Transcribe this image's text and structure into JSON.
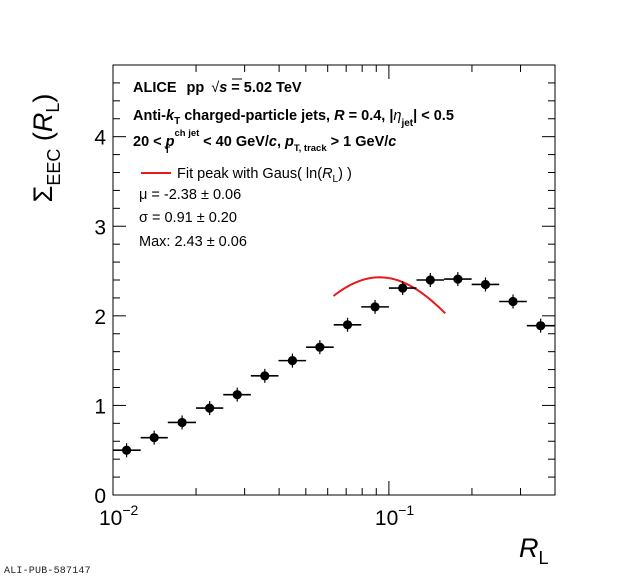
{
  "chart_data": {
    "type": "scatter",
    "xscale": "log",
    "xlim": [
      0.01,
      0.4
    ],
    "ylim": [
      0,
      4.8
    ],
    "xlabel": {
      "main": "R",
      "sub": "L"
    },
    "ylabel": {
      "sigma": "Σ",
      "sub": "EEC",
      "arg": "R",
      "argsub": "L"
    },
    "x_ticks": [
      {
        "value": 0.01,
        "base": "10",
        "exp": "−2"
      },
      {
        "value": 0.1,
        "base": "10",
        "exp": "−1"
      }
    ],
    "y_ticks": [
      "0",
      "1",
      "2",
      "3",
      "4"
    ],
    "annotations": {
      "line1": {
        "experiment": "ALICE",
        "system": "pp",
        "sqrt": "√",
        "s": "s",
        "energy": " = 5.02 TeV"
      },
      "line2": {
        "a": "Anti-",
        "k": "k",
        "ksub": "T",
        "b": " charged-particle jets,  ",
        "R": "R",
        "c": " = 0.4, |",
        "eta": "η",
        "etasub": "jet",
        "d": "| < 0.5"
      },
      "line3": {
        "a": "20 < ",
        "p": "p",
        "psup": "ch jet",
        "psub": "T",
        "b": " < 40 GeV/",
        "c1": "c",
        "b2": ",  ",
        "p2": "p",
        "p2sub": "T, track",
        "d": " > 1 GeV/",
        "c2": "c"
      }
    },
    "legend": {
      "label_a": "Fit peak with Gaus( ln(",
      "label_R": "R",
      "label_sub": "L",
      "label_b": ") )",
      "color": "#e8191b"
    },
    "fit_results": [
      "μ = -2.38 ± 0.06",
      "σ = 0.91 ± 0.20",
      "Max: 2.43 ± 0.06"
    ],
    "series": [
      {
        "color": "#000000",
        "points": [
          {
            "x": 0.0112,
            "y": 0.5,
            "xlo": 0.01,
            "xhi": 0.0126
          },
          {
            "x": 0.0141,
            "y": 0.64,
            "xlo": 0.0126,
            "xhi": 0.0158
          },
          {
            "x": 0.0178,
            "y": 0.81,
            "xlo": 0.0158,
            "xhi": 0.02
          },
          {
            "x": 0.0224,
            "y": 0.97,
            "xlo": 0.02,
            "xhi": 0.0251
          },
          {
            "x": 0.0282,
            "y": 1.12,
            "xlo": 0.0251,
            "xhi": 0.0316
          },
          {
            "x": 0.0355,
            "y": 1.33,
            "xlo": 0.0316,
            "xhi": 0.0398
          },
          {
            "x": 0.0447,
            "y": 1.5,
            "xlo": 0.0398,
            "xhi": 0.0501
          },
          {
            "x": 0.0562,
            "y": 1.65,
            "xlo": 0.0501,
            "xhi": 0.0631
          },
          {
            "x": 0.0708,
            "y": 1.9,
            "xlo": 0.0631,
            "xhi": 0.0794
          },
          {
            "x": 0.0891,
            "y": 2.1,
            "xlo": 0.0794,
            "xhi": 0.1
          },
          {
            "x": 0.1122,
            "y": 2.31,
            "xlo": 0.1,
            "xhi": 0.1259
          },
          {
            "x": 0.1413,
            "y": 2.4,
            "xlo": 0.1259,
            "xhi": 0.1585
          },
          {
            "x": 0.1778,
            "y": 2.41,
            "xlo": 0.1585,
            "xhi": 0.1995
          },
          {
            "x": 0.2239,
            "y": 2.35,
            "xlo": 0.1995,
            "xhi": 0.2512
          },
          {
            "x": 0.2818,
            "y": 2.16,
            "xlo": 0.2512,
            "xhi": 0.3162
          },
          {
            "x": 0.3548,
            "y": 1.89,
            "xlo": 0.3162,
            "xhi": 0.3981
          }
        ]
      }
    ],
    "fit_curve": {
      "x_range": [
        0.063,
        0.16
      ]
    }
  },
  "watermark": "ALI-PUB-587147"
}
